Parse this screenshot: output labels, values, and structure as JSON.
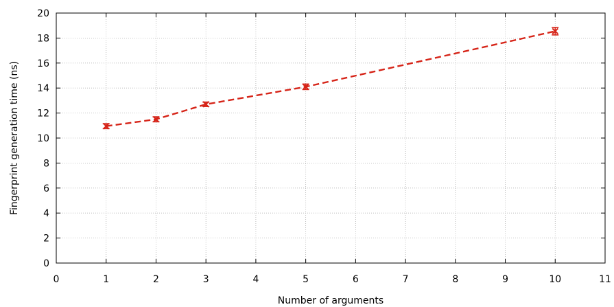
{
  "chart_data": {
    "type": "line",
    "title": "",
    "xlabel": "Number of arguments",
    "ylabel": "Fingerprint generation time (ns)",
    "xlim": [
      0,
      11
    ],
    "ylim": [
      0,
      20
    ],
    "xticks": [
      0,
      1,
      2,
      3,
      4,
      5,
      6,
      7,
      8,
      9,
      10,
      11
    ],
    "yticks": [
      0,
      2,
      4,
      6,
      8,
      10,
      12,
      14,
      16,
      18,
      20
    ],
    "grid": true,
    "legend": "none",
    "series": [
      {
        "color": "#d62418",
        "line_style": "dashed",
        "marker": "cross",
        "x": [
          1,
          2,
          3,
          5,
          10
        ],
        "y": [
          10.95,
          11.5,
          12.7,
          14.1,
          18.55
        ],
        "err": [
          0.2,
          0.2,
          0.18,
          0.22,
          0.3
        ]
      }
    ]
  }
}
